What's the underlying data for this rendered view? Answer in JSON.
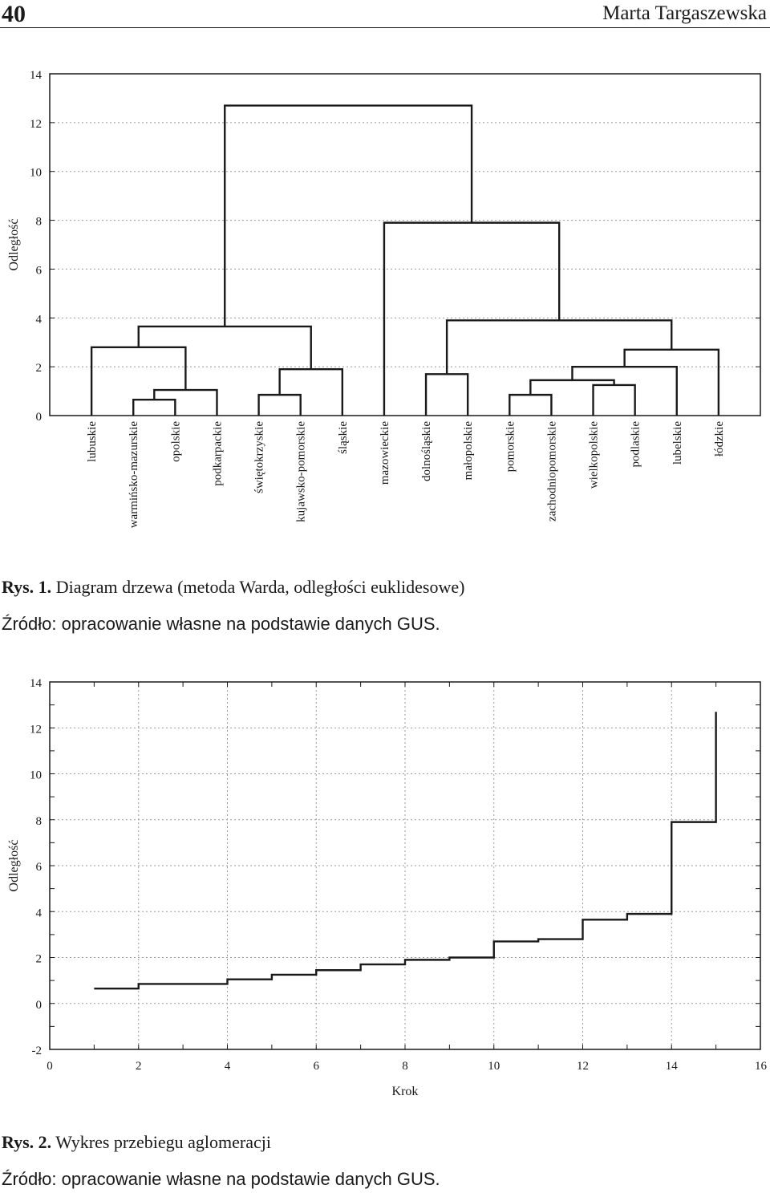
{
  "header": {
    "page_number": "40",
    "author": "Marta Targaszewska"
  },
  "figure1": {
    "caption_label": "Rys. 1.",
    "caption_text": "Diagram drzewa (metoda Warda, odległości euklidesowe)",
    "source": "Źródło: opracowanie własne na podstawie danych GUS."
  },
  "figure2": {
    "caption_label": "Rys. 2.",
    "caption_text": "Wykres przebiegu aglomeracji",
    "source": "Źródło: opracowanie własne na podstawie danych GUS."
  },
  "chart_data": [
    {
      "type": "dendrogram",
      "ylabel": "Odległość",
      "ylim": [
        0,
        14
      ],
      "yticks": [
        0,
        2,
        4,
        6,
        8,
        10,
        12,
        14
      ],
      "grid": true,
      "leaves": [
        "lubuskie",
        "warmińsko-mazurskie",
        "opolskie",
        "podkarpackie",
        "świętokrzyskie",
        "kujawsko-pomorskie",
        "śląskie",
        "mazowieckie",
        "dolnośląskie",
        "małopolskie",
        "pomorskie",
        "zachodniopomorskie",
        "wielkopolskie",
        "podlaskie",
        "lubelskie",
        "łódzkie"
      ],
      "merges": [
        {
          "a": 1,
          "b": 2,
          "height": 0.65
        },
        {
          "a": 4,
          "b": 5,
          "height": 0.85
        },
        {
          "a": 10,
          "b": 11,
          "height": 0.85
        },
        {
          "a": 3,
          "b": 16,
          "height": 1.05
        },
        {
          "a": 12,
          "b": 13,
          "height": 1.25
        },
        {
          "a": 6,
          "b": 17,
          "height": 1.9
        },
        {
          "a": 18,
          "b": 20,
          "height": 1.45
        },
        {
          "a": 8,
          "b": 9,
          "height": 1.7
        },
        {
          "a": 22,
          "b": 14,
          "height": 2.0
        },
        {
          "a": 24,
          "b": 15,
          "height": 2.7
        },
        {
          "a": 0,
          "b": 19,
          "height": 2.8
        },
        {
          "a": 23,
          "b": 25,
          "height": 3.9
        },
        {
          "a": 26,
          "b": 21,
          "height": 3.65
        },
        {
          "a": 7,
          "b": 27,
          "height": 7.9
        },
        {
          "a": 28,
          "b": 29,
          "height": 12.7
        }
      ]
    },
    {
      "type": "line",
      "step": true,
      "xlabel": "Krok",
      "ylabel": "Odległość",
      "xlim": [
        0,
        16
      ],
      "ylim": [
        -2,
        14
      ],
      "xticks": [
        0,
        2,
        4,
        6,
        8,
        10,
        12,
        14,
        16
      ],
      "yticks": [
        -2,
        0,
        2,
        4,
        6,
        8,
        10,
        12,
        14
      ],
      "grid": true,
      "x": [
        1,
        2,
        3,
        4,
        5,
        6,
        7,
        8,
        9,
        10,
        11,
        12,
        13,
        14,
        15
      ],
      "values": [
        0.65,
        0.85,
        0.85,
        1.05,
        1.25,
        1.45,
        1.7,
        1.9,
        2.0,
        2.7,
        2.8,
        3.65,
        3.9,
        7.9,
        12.7
      ]
    }
  ]
}
